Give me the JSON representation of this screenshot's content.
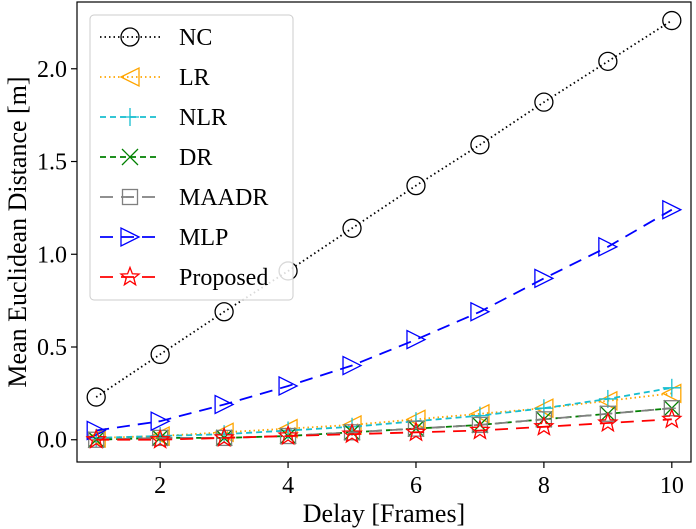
{
  "chart_data": {
    "type": "line",
    "xlabel": "Delay [Frames]",
    "ylabel": "Mean Euclidean Distance [m]",
    "xlim": [
      0.7,
      10.3
    ],
    "ylim": [
      -0.12,
      2.36
    ],
    "xticks": [
      2,
      4,
      6,
      8,
      10
    ],
    "yticks": [
      0.0,
      0.5,
      1.0,
      1.5,
      2.0
    ],
    "xtick_labels": [
      "2",
      "4",
      "6",
      "8",
      "10"
    ],
    "ytick_labels": [
      "0.0",
      "0.5",
      "1.0",
      "1.5",
      "2.0"
    ],
    "grid": false,
    "legend_position": "top-left",
    "x": [
      1,
      2,
      3,
      4,
      5,
      6,
      7,
      8,
      9,
      10
    ],
    "series": [
      {
        "name": "NC",
        "color": "#000000",
        "dash": "dotted",
        "marker": "circle",
        "values": [
          0.23,
          0.46,
          0.69,
          0.91,
          1.14,
          1.37,
          1.59,
          1.82,
          2.04,
          2.26
        ]
      },
      {
        "name": "LR",
        "color": "#ffa500",
        "dash": "dotted",
        "marker": "triangle-left",
        "values": [
          0.01,
          0.02,
          0.04,
          0.06,
          0.08,
          0.11,
          0.14,
          0.17,
          0.21,
          0.25
        ]
      },
      {
        "name": "NLR",
        "color": "#17becf",
        "dash": "dashed",
        "marker": "plus",
        "values": [
          0.01,
          0.02,
          0.03,
          0.05,
          0.07,
          0.1,
          0.13,
          0.17,
          0.22,
          0.28
        ]
      },
      {
        "name": "DR",
        "color": "#008000",
        "dash": "dashed",
        "marker": "x",
        "values": [
          0.0,
          0.01,
          0.01,
          0.02,
          0.04,
          0.06,
          0.08,
          0.11,
          0.14,
          0.17
        ]
      },
      {
        "name": "MAADR",
        "color": "#808080",
        "dash": "longdash",
        "marker": "square-minus",
        "values": [
          0.0,
          0.01,
          0.01,
          0.02,
          0.04,
          0.06,
          0.08,
          0.11,
          0.14,
          0.17
        ]
      },
      {
        "name": "MLP",
        "color": "#0000ff",
        "dash": "longdash",
        "marker": "triangle-right",
        "values": [
          0.05,
          0.1,
          0.19,
          0.29,
          0.4,
          0.54,
          0.69,
          0.87,
          1.04,
          1.24
        ]
      },
      {
        "name": "Proposed",
        "color": "#ff0000",
        "dash": "longdash",
        "marker": "star",
        "values": [
          0.0,
          0.0,
          0.01,
          0.02,
          0.03,
          0.04,
          0.05,
          0.07,
          0.09,
          0.11
        ]
      }
    ]
  }
}
